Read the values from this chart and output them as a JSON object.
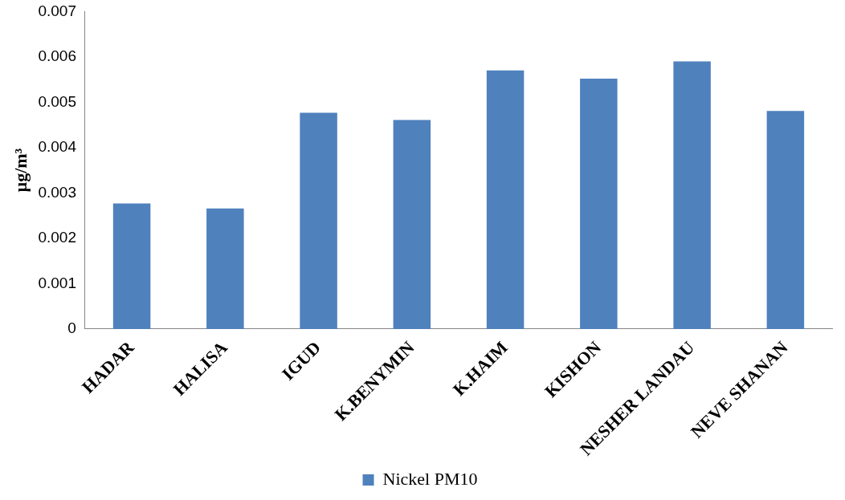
{
  "chart_data": {
    "type": "bar",
    "ylabel": "µg/m³",
    "categories": [
      "HADAR",
      "HALISA",
      "IGUD",
      "K.BENYMIN",
      "K.HAIM",
      "KISHON",
      "NESHER LANDAU",
      "NEVE SHANAN"
    ],
    "series": [
      {
        "name": "Nickel PM10",
        "color": "#4f81bd",
        "values": [
          0.00277,
          0.00266,
          0.00477,
          0.00461,
          0.0057,
          0.00552,
          0.0059,
          0.00481
        ]
      }
    ],
    "ylim": [
      0,
      0.007
    ],
    "yticks": [
      0,
      0.001,
      0.002,
      0.003,
      0.004,
      0.005,
      0.006,
      0.007
    ],
    "grid": false,
    "legend": "bottom"
  }
}
